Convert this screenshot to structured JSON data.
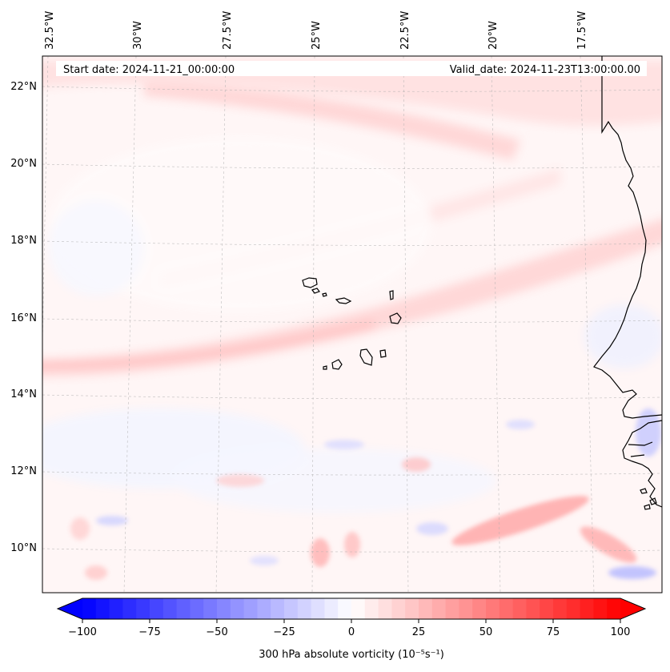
{
  "map": {
    "header_left": "Start date: 2024-11-21_00:00:00",
    "header_right": "Valid_date: 2024-11-23T13:00:00.00",
    "lon_labels": [
      "32.5°W",
      "30°W",
      "27.5°W",
      "25°W",
      "22.5°W",
      "20°W",
      "17.5°W"
    ],
    "lat_labels": [
      "22°N",
      "20°N",
      "18°N",
      "16°N",
      "14°N",
      "12°N",
      "10°N"
    ],
    "colorbar": {
      "label": "300 hPa absolute vorticity (10⁻⁵s⁻¹)",
      "ticks": [
        "−100",
        "−75",
        "−50",
        "−25",
        "0",
        "25",
        "50",
        "75",
        "100"
      ],
      "min": -100,
      "max": 100,
      "cmap": "bwr",
      "extend": "both"
    },
    "colors": {
      "positive": "#ff0000",
      "negative": "#0000ff",
      "zero": "#ffffff"
    }
  }
}
